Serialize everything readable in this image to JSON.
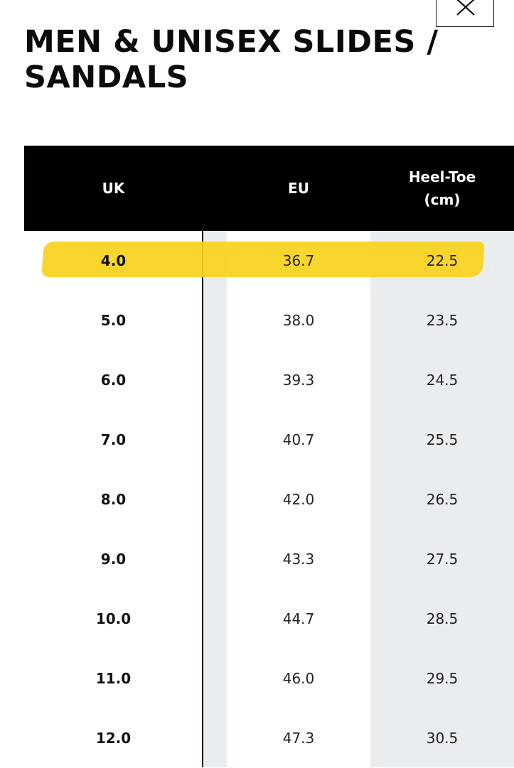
{
  "title": "MEN & UNISEX SLIDES / SANDALS",
  "close_icon": "close-icon",
  "highlight_color": "#f9d21c",
  "table": {
    "headers": {
      "uk": "UK",
      "eu": "EU",
      "heel_toe_line1": "Heel-Toe",
      "heel_toe_line2": "(cm)"
    },
    "rows": [
      {
        "uk": "4.0",
        "eu": "36.7",
        "heel_toe": "22.5"
      },
      {
        "uk": "5.0",
        "eu": "38.0",
        "heel_toe": "23.5"
      },
      {
        "uk": "6.0",
        "eu": "39.3",
        "heel_toe": "24.5"
      },
      {
        "uk": "7.0",
        "eu": "40.7",
        "heel_toe": "25.5"
      },
      {
        "uk": "8.0",
        "eu": "42.0",
        "heel_toe": "26.5"
      },
      {
        "uk": "9.0",
        "eu": "43.3",
        "heel_toe": "27.5"
      },
      {
        "uk": "10.0",
        "eu": "44.7",
        "heel_toe": "28.5"
      },
      {
        "uk": "11.0",
        "eu": "46.0",
        "heel_toe": "29.5"
      },
      {
        "uk": "12.0",
        "eu": "47.3",
        "heel_toe": "30.5"
      }
    ]
  }
}
